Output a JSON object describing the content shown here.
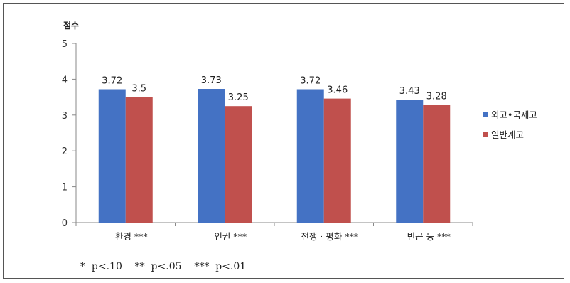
{
  "chart_data": {
    "type": "bar",
    "ylabel": "점수",
    "ylim": [
      0,
      5
    ],
    "yticks": [
      0,
      1,
      2,
      3,
      4,
      5
    ],
    "grid": false,
    "legend_position": "right",
    "categories": [
      "환경 ***",
      "인권 ***",
      "전쟁 · 평화 ***",
      "빈곤 등 ***"
    ],
    "series": [
      {
        "name": "외고•국제고",
        "color": "#4472C4",
        "values": [
          3.72,
          3.73,
          3.72,
          3.43
        ]
      },
      {
        "name": "일반계고",
        "color": "#C0504D",
        "values": [
          3.5,
          3.25,
          3.46,
          3.28
        ]
      }
    ]
  },
  "footnote": "*  p<.10    **  p<.05    ***  p<.01"
}
